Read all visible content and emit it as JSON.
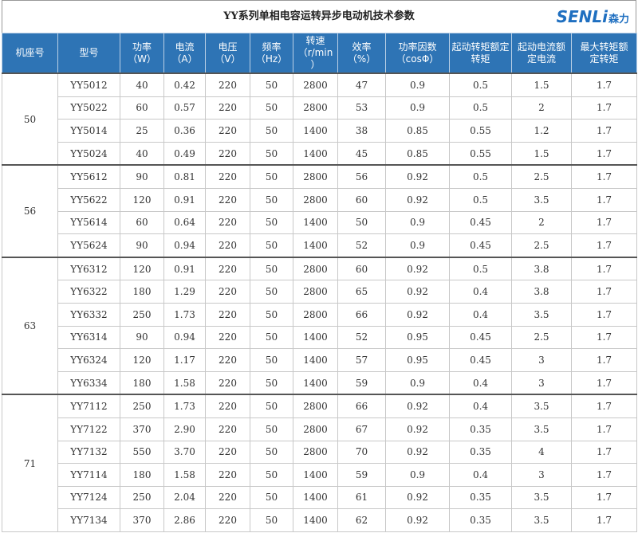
{
  "title": "YY系列单相电容运转异步电动机技术参数",
  "logo": {
    "brand": "SENLi",
    "name": "森力"
  },
  "table": {
    "header": [
      [
        "机座号"
      ],
      [
        "型号"
      ],
      [
        "功率",
        "（W）"
      ],
      [
        "电流",
        "（A）"
      ],
      [
        "电压",
        "（V）"
      ],
      [
        "频率",
        "（Hz）"
      ],
      [
        "转速",
        "（r/min",
        "）"
      ],
      [
        "效率",
        "（%）"
      ],
      [
        "功率因数",
        "（cosΦ）"
      ],
      [
        "起动转矩额定",
        "转矩"
      ],
      [
        "起动电流额",
        "定电流"
      ],
      [
        "最大转矩额",
        "定转矩"
      ]
    ],
    "groups": [
      {
        "frame": "50",
        "rows": [
          [
            "YY5012",
            "40",
            "0.42",
            "220",
            "50",
            "2800",
            "47",
            "0.9",
            "0.5",
            "1.5",
            "1.7"
          ],
          [
            "YY5022",
            "60",
            "0.57",
            "220",
            "50",
            "2800",
            "53",
            "0.9",
            "0.5",
            "2",
            "1.7"
          ],
          [
            "YY5014",
            "25",
            "0.36",
            "220",
            "50",
            "1400",
            "38",
            "0.85",
            "0.55",
            "1.2",
            "1.7"
          ],
          [
            "YY5024",
            "40",
            "0.49",
            "220",
            "50",
            "1400",
            "45",
            "0.85",
            "0.55",
            "1.5",
            "1.7"
          ]
        ]
      },
      {
        "frame": "56",
        "rows": [
          [
            "YY5612",
            "90",
            "0.81",
            "220",
            "50",
            "2800",
            "56",
            "0.92",
            "0.5",
            "2.5",
            "1.7"
          ],
          [
            "YY5622",
            "120",
            "0.91",
            "220",
            "50",
            "2800",
            "60",
            "0.92",
            "0.5",
            "3.5",
            "1.7"
          ],
          [
            "YY5614",
            "60",
            "0.64",
            "220",
            "50",
            "1400",
            "50",
            "0.9",
            "0.45",
            "2",
            "1.7"
          ],
          [
            "YY5624",
            "90",
            "0.94",
            "220",
            "50",
            "1400",
            "52",
            "0.9",
            "0.45",
            "2.5",
            "1.7"
          ]
        ]
      },
      {
        "frame": "63",
        "rows": [
          [
            "YY6312",
            "120",
            "0.91",
            "220",
            "50",
            "2800",
            "60",
            "0.92",
            "0.5",
            "3.8",
            "1.7"
          ],
          [
            "YY6322",
            "180",
            "1.29",
            "220",
            "50",
            "2800",
            "65",
            "0.92",
            "0.4",
            "3.8",
            "1.7"
          ],
          [
            "YY6332",
            "250",
            "1.73",
            "220",
            "50",
            "2800",
            "66",
            "0.92",
            "0.4",
            "3.5",
            "1.7"
          ],
          [
            "YY6314",
            "90",
            "0.94",
            "220",
            "50",
            "1400",
            "52",
            "0.95",
            "0.45",
            "2.5",
            "1.7"
          ],
          [
            "YY6324",
            "120",
            "1.17",
            "220",
            "50",
            "1400",
            "57",
            "0.95",
            "0.45",
            "3",
            "1.7"
          ],
          [
            "YY6334",
            "180",
            "1.58",
            "220",
            "50",
            "1400",
            "59",
            "0.9",
            "0.4",
            "3",
            "1.7"
          ]
        ]
      },
      {
        "frame": "71",
        "rows": [
          [
            "YY7112",
            "250",
            "1.73",
            "220",
            "50",
            "2800",
            "66",
            "0.92",
            "0.4",
            "3.5",
            "1.7"
          ],
          [
            "YY7122",
            "370",
            "2.90",
            "220",
            "50",
            "2800",
            "67",
            "0.92",
            "0.35",
            "3.5",
            "1.7"
          ],
          [
            "YY7132",
            "550",
            "3.70",
            "220",
            "50",
            "2800",
            "70",
            "0.92",
            "0.35",
            "4",
            "1.7"
          ],
          [
            "YY7114",
            "180",
            "1.58",
            "220",
            "50",
            "1400",
            "59",
            "0.9",
            "0.4",
            "3",
            "1.7"
          ],
          [
            "YY7124",
            "250",
            "2.04",
            "220",
            "50",
            "1400",
            "61",
            "0.92",
            "0.35",
            "3.5",
            "1.7"
          ],
          [
            "YY7134",
            "370",
            "2.86",
            "220",
            "50",
            "1400",
            "62",
            "0.92",
            "0.35",
            "3.5",
            "1.7"
          ]
        ]
      }
    ]
  }
}
